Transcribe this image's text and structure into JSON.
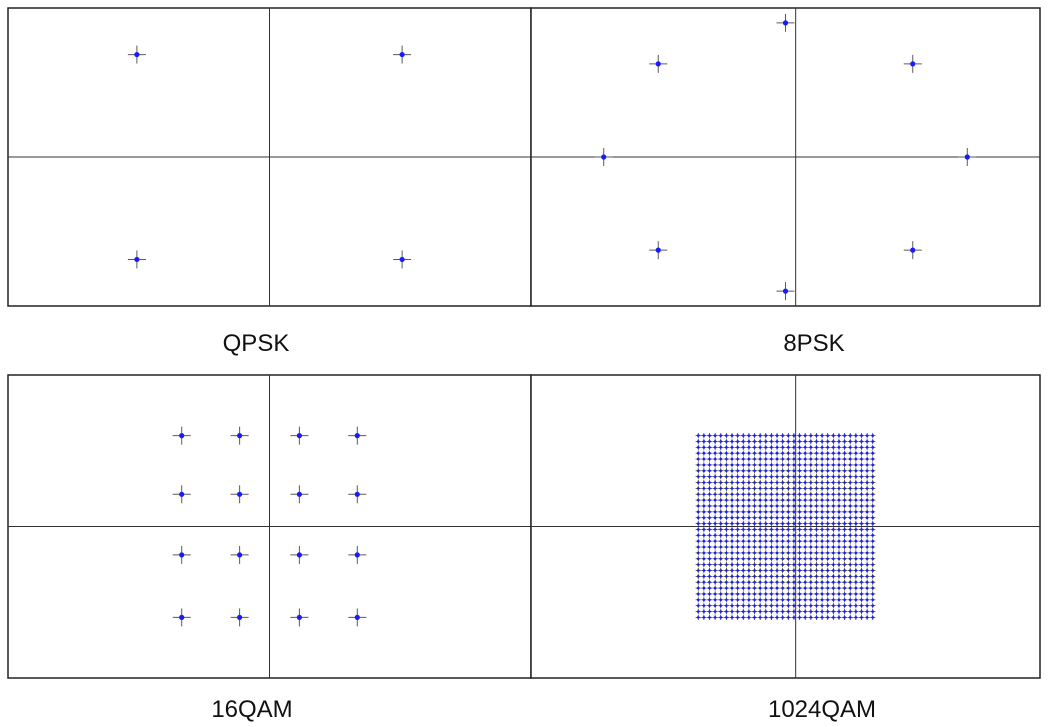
{
  "colors": {
    "point": "#1a1aff",
    "marker": "#5a5a5a",
    "axis": "#333333",
    "frame": "#222222",
    "caption": "#111111"
  },
  "chart_data": [
    {
      "type": "scatter",
      "title": "QPSK",
      "xlim": [
        -1.4,
        1.4
      ],
      "ylim": [
        -0.8,
        0.8
      ],
      "grid": false,
      "points": [
        {
          "x": -0.71,
          "y": 0.55
        },
        {
          "x": 0.71,
          "y": 0.55
        },
        {
          "x": -0.71,
          "y": -0.55
        },
        {
          "x": 0.71,
          "y": -0.55
        }
      ]
    },
    {
      "type": "scatter",
      "title": "8PSK",
      "xlim": [
        -1.4,
        1.4
      ],
      "ylim": [
        -0.8,
        0.8
      ],
      "grid": false,
      "points": [
        {
          "x": 0.0,
          "y": 0.72
        },
        {
          "x": -0.7,
          "y": 0.5
        },
        {
          "x": 0.7,
          "y": 0.5
        },
        {
          "x": -1.0,
          "y": 0.0
        },
        {
          "x": 1.0,
          "y": 0.0
        },
        {
          "x": -0.7,
          "y": -0.5
        },
        {
          "x": 0.7,
          "y": -0.5
        },
        {
          "x": 0.0,
          "y": -0.72
        }
      ]
    },
    {
      "type": "scatter",
      "title": "16QAM",
      "xlim": [
        -1.4,
        1.4
      ],
      "ylim": [
        -0.8,
        0.8
      ],
      "grid": false,
      "points": [
        {
          "x": -0.47,
          "y": 0.48
        },
        {
          "x": -0.16,
          "y": 0.48
        },
        {
          "x": 0.16,
          "y": 0.48
        },
        {
          "x": 0.47,
          "y": 0.48
        },
        {
          "x": -0.47,
          "y": 0.17
        },
        {
          "x": -0.16,
          "y": 0.17
        },
        {
          "x": 0.16,
          "y": 0.17
        },
        {
          "x": 0.47,
          "y": 0.17
        },
        {
          "x": -0.47,
          "y": -0.15
        },
        {
          "x": -0.16,
          "y": -0.15
        },
        {
          "x": 0.16,
          "y": -0.15
        },
        {
          "x": 0.47,
          "y": -0.15
        },
        {
          "x": -0.47,
          "y": -0.48
        },
        {
          "x": -0.16,
          "y": -0.48
        },
        {
          "x": 0.16,
          "y": -0.48
        },
        {
          "x": 0.47,
          "y": -0.48
        }
      ]
    },
    {
      "type": "scatter",
      "title": "1024QAM",
      "xlim": [
        -1.4,
        1.4
      ],
      "ylim": [
        -0.8,
        0.8
      ],
      "grid": false,
      "grid_points": {
        "columns": 32,
        "rows": 32,
        "x_range": [
          -0.48,
          0.48
        ],
        "y_range": [
          -0.48,
          0.48
        ]
      }
    }
  ]
}
